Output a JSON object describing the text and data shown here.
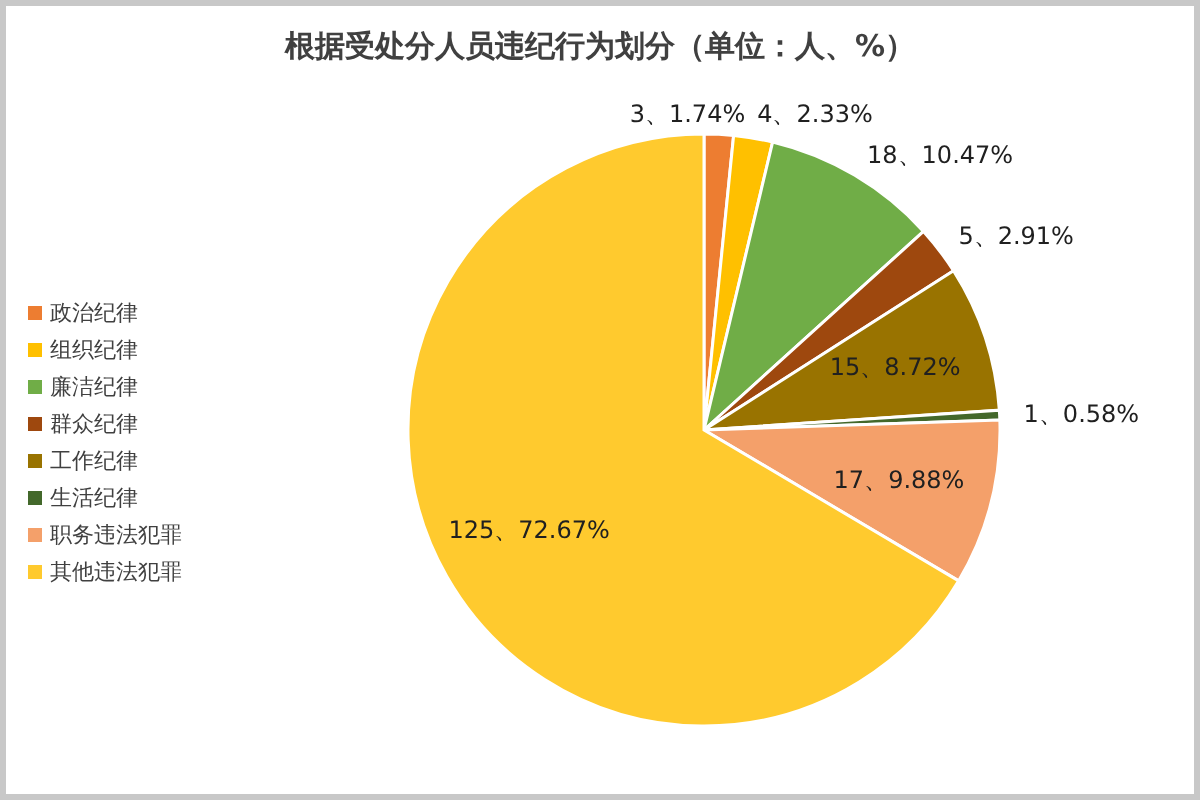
{
  "chart_data": {
    "type": "pie",
    "title": "根据受处分人员违纪行为划分（单位：人、%）",
    "categories": [
      "政治纪律",
      "组织纪律",
      "廉洁纪律",
      "群众纪律",
      "工作纪律",
      "生活纪律",
      "职务违法犯罪",
      "其他违法犯罪"
    ],
    "values": [
      3,
      4,
      18,
      5,
      15,
      1,
      17,
      125
    ],
    "value_labels": [
      "3、1.74%",
      "4、2.33%",
      "18、10.47%",
      "5、2.91%",
      "15、8.72%",
      "1、0.58%",
      "17、9.88%",
      "125、72.67%"
    ],
    "colors": [
      "#ed7d31",
      "#ffc000",
      "#70ad47",
      "#9e480e",
      "#997300",
      "#43682b",
      "#f4a06a",
      "#ffca2e"
    ],
    "legend": "left"
  }
}
